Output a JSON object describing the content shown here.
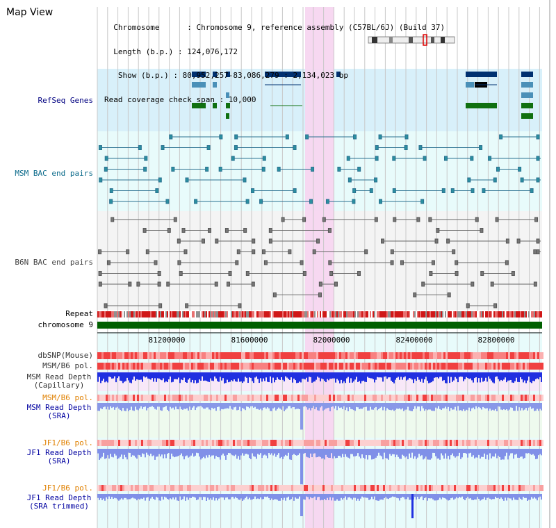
{
  "header": {
    "title": "Map View",
    "info_lines": [
      "  Chromosome      : Chromosome 9, reference assembly (C57BL/6J) (Build 37)",
      "  Length (b.p.) : 124,076,172",
      "   Show (b.p.) : 80,952,257-83,086,279 : 2,134,023 bp",
      "Read coverage check span : 10,000"
    ]
  },
  "tracks": {
    "refseq": "RefSeq Genes",
    "msm_bac": "MSM BAC end pairs",
    "b6n_bac": "B6N BAC end pairs",
    "repeat": "Repeat",
    "chromosome": "chromosome 9",
    "dbsnp": "dbSNP(Mouse)",
    "msm_pol": "MSM/B6 pol.",
    "msm_depth_cap_1": "MSM Read Depth",
    "msm_depth_cap_2": "(Capillary)",
    "msm_pol_2": "MSM/B6 pol.",
    "msm_depth_sra_1": "MSM Read Depth",
    "msm_depth_sra_2": "(SRA)",
    "jf1_pol": "JF1/B6 pol.",
    "jf1_depth_sra_1": "JF1 Read Depth",
    "jf1_depth_sra_2": "(SRA)",
    "jf1_pol_2": "JF1/B6 pol.",
    "jf1_trim_1": "JF1 Read Depth",
    "jf1_trim_2": "(SRA trimmed)"
  },
  "axis": {
    "ticks": [
      "81200000",
      "81600000",
      "82000000",
      "82400000",
      "82800000"
    ]
  },
  "colors": {
    "label_navy": "#000080",
    "label_teal": "#0000a0",
    "label_orange": "#e08000",
    "refseq_bg": "#d8f0fa",
    "bac_bg": "#e8fbfb",
    "highlight": "#f7d6f0",
    "chromosome_bar": "#006000"
  }
}
